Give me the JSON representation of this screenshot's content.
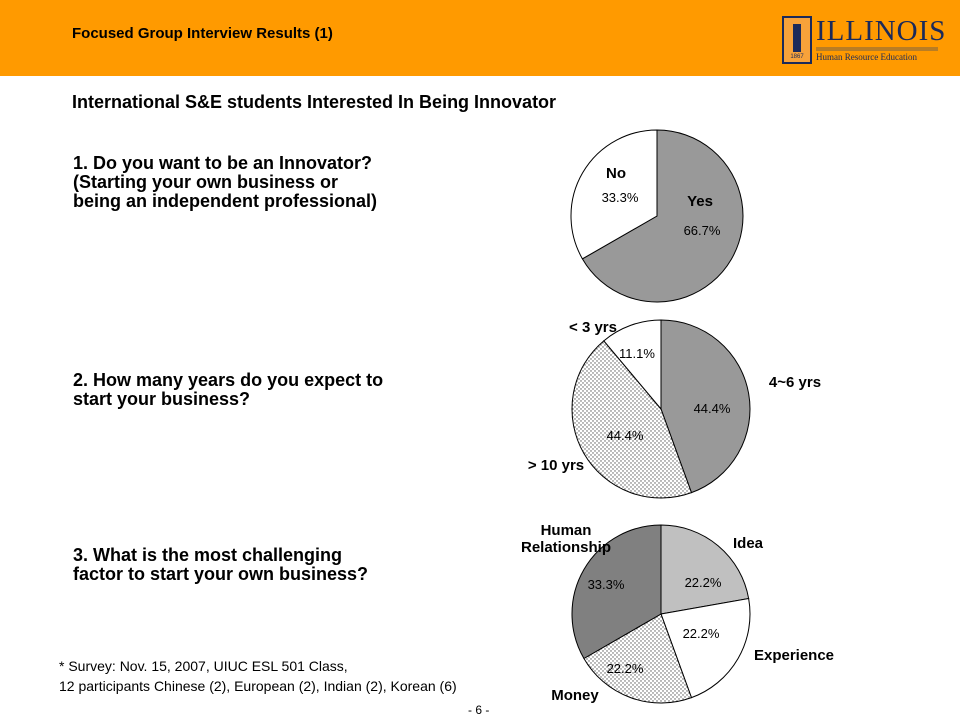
{
  "header": {
    "title": "Focused Group Interview Results (1)",
    "logo": {
      "name": "ILLINOIS",
      "year": "1867",
      "dept": "Human Resource Education"
    }
  },
  "subtitle": "International S&E students Interested In Being Innovator",
  "questions": [
    "1. Do you want to be an Innovator?\n(Starting your own business or\nbeing an independent professional)",
    "2. How many years do you expect to\nstart your business?",
    "3. What is the most challenging\nfactor to start your own business?"
  ],
  "footnote": "* Survey: Nov. 15, 2007, UIUC ESL 501 Class,\n12 participants  Chinese (2), European (2), Indian (2), Korean (6)",
  "page_number": "- 6 -",
  "colors": {
    "header": "#ff9a00",
    "dark_gray": "#999999",
    "darker_gray": "#808080",
    "light_gray": "#c0c0c0",
    "white": "#ffffff"
  },
  "chart_data": [
    {
      "type": "pie",
      "slices": [
        {
          "label": "Yes",
          "value": 66.7,
          "pct": "66.7%",
          "fill": "#999999"
        },
        {
          "label": "No",
          "value": 33.3,
          "pct": "33.3%",
          "fill": "#ffffff"
        }
      ]
    },
    {
      "type": "pie",
      "slices": [
        {
          "label": "4~6 yrs",
          "value": 44.4,
          "pct": "44.4%",
          "fill": "#999999"
        },
        {
          "label": "> 10 yrs",
          "value": 44.4,
          "pct": "44.4%",
          "fill": "dots"
        },
        {
          "label": "< 3 yrs",
          "value": 11.1,
          "pct": "11.1%",
          "fill": "#ffffff"
        }
      ]
    },
    {
      "type": "pie",
      "slices": [
        {
          "label": "Idea",
          "value": 22.2,
          "pct": "22.2%",
          "fill": "#c0c0c0"
        },
        {
          "label": "Experience",
          "value": 22.2,
          "pct": "22.2%",
          "fill": "#ffffff"
        },
        {
          "label": "Money",
          "value": 22.2,
          "pct": "22.2%",
          "fill": "dots"
        },
        {
          "label": "Human\nRelationship",
          "value": 33.3,
          "pct": "33.3%",
          "fill": "#808080"
        }
      ]
    }
  ]
}
